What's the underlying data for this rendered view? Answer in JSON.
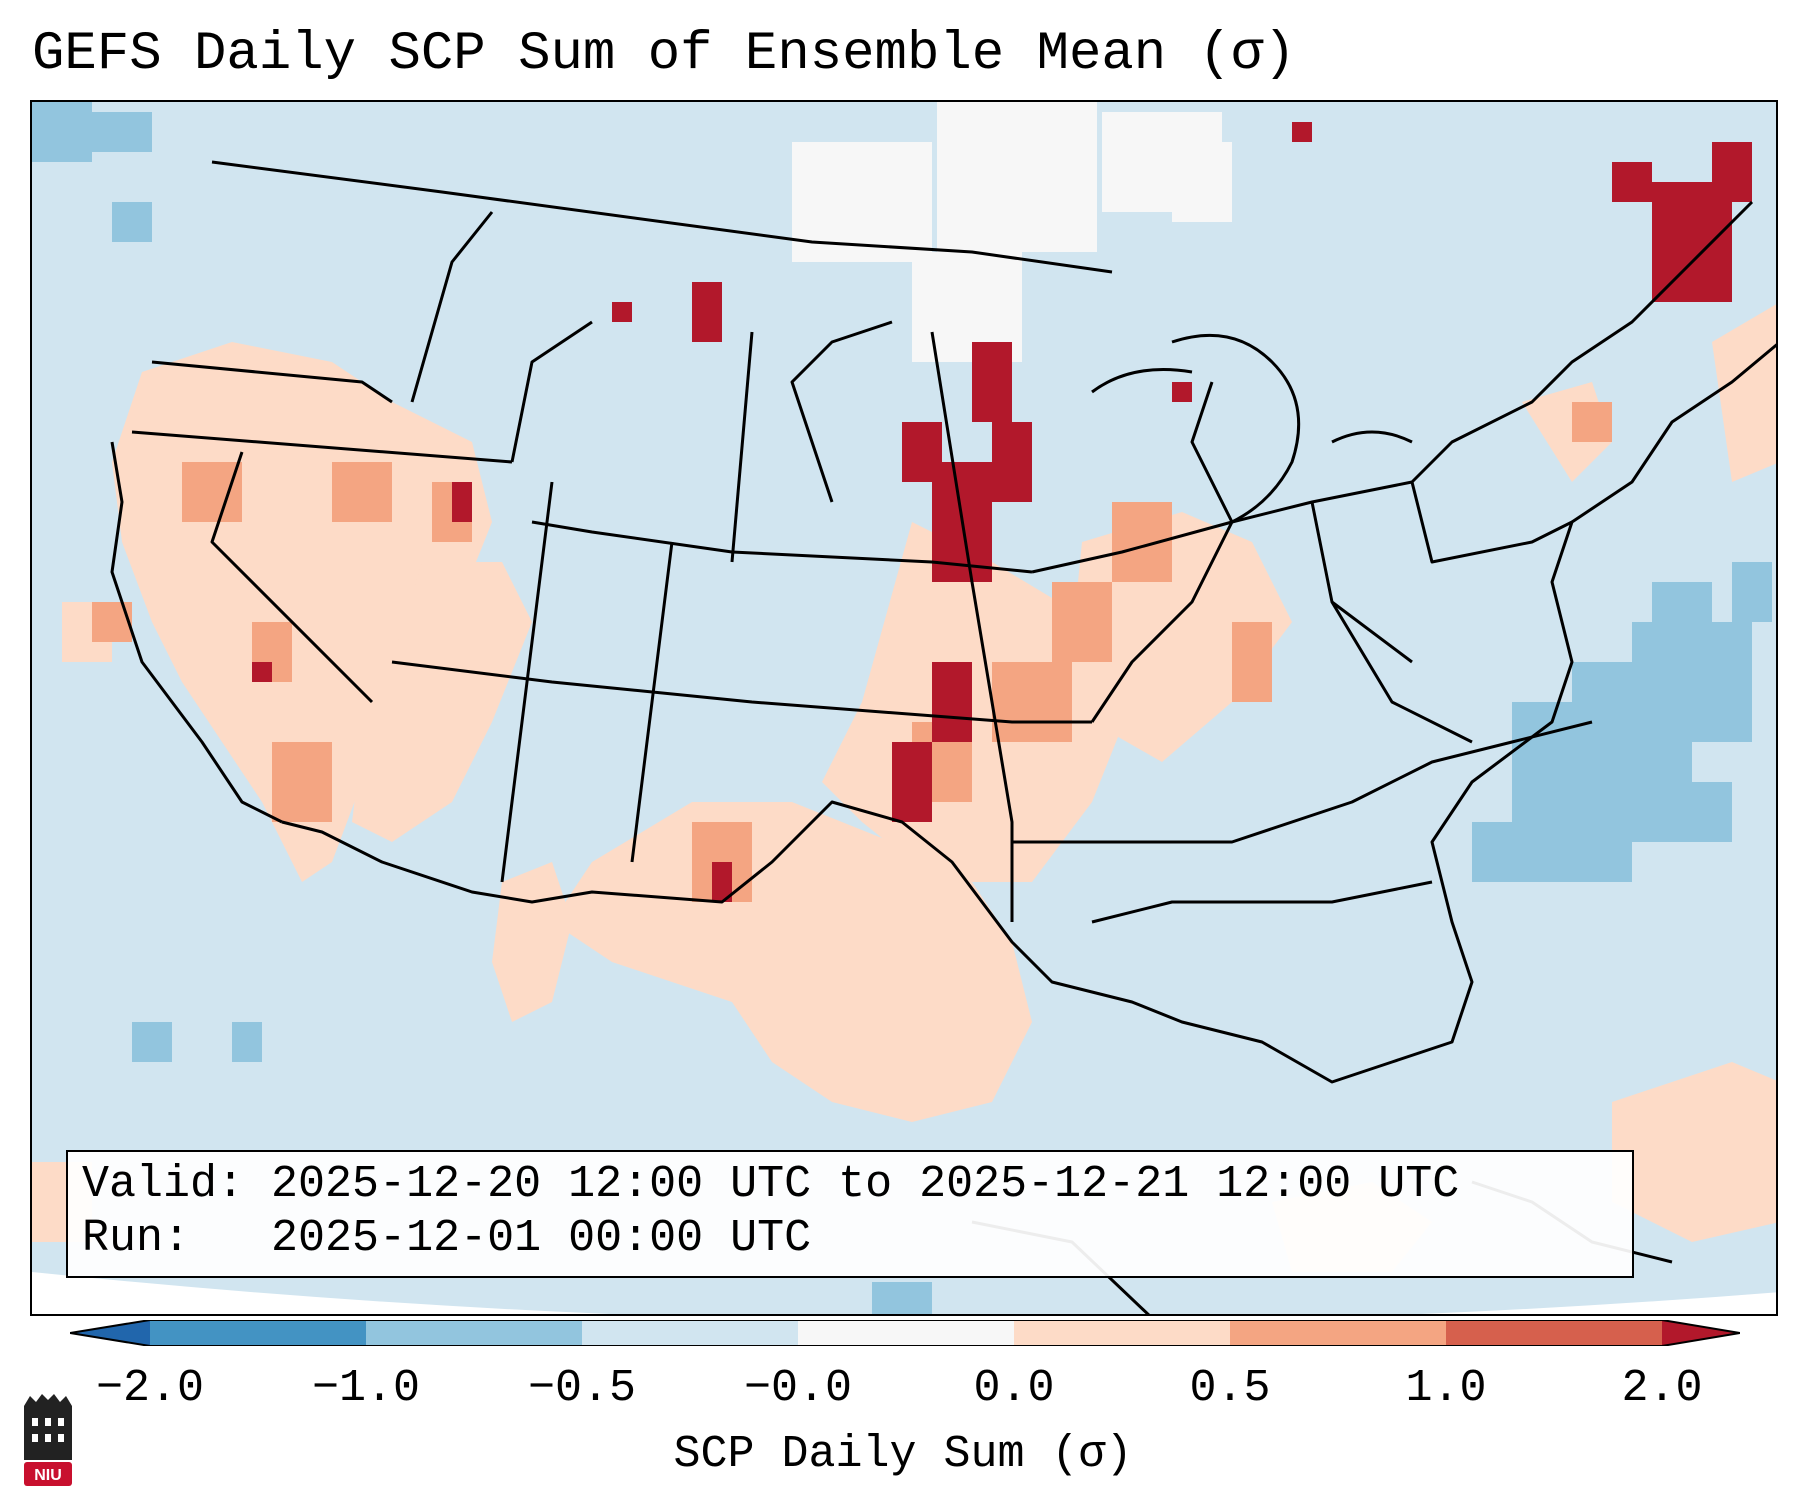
{
  "title": "GEFS Daily SCP Sum of Ensemble Mean (σ)",
  "info": {
    "valid_label": "Valid:",
    "valid_value": "2025-12-20 12:00 UTC to 2025-12-21 12:00 UTC",
    "run_label": "Run:",
    "run_value": "2025-12-01 00:00 UTC"
  },
  "colorbar": {
    "title": "SCP Daily Sum (σ)",
    "ticks": [
      "−2.0",
      "−1.0",
      "−0.5",
      "−0.0",
      "0.0",
      "0.5",
      "1.0",
      "2.0"
    ],
    "colors": {
      "below_min": "#2166ac",
      "b1": "#4393c3",
      "b2": "#92c5de",
      "b3": "#d1e5f0",
      "b4": "#f7f7f7",
      "b5": "#fddbc7",
      "b6": "#f4a582",
      "b7": "#d6604d",
      "above_max": "#b2182b"
    }
  },
  "logo": {
    "text": "NIU",
    "colors": {
      "tower": "#222222",
      "badge": "#c8102e"
    }
  }
}
